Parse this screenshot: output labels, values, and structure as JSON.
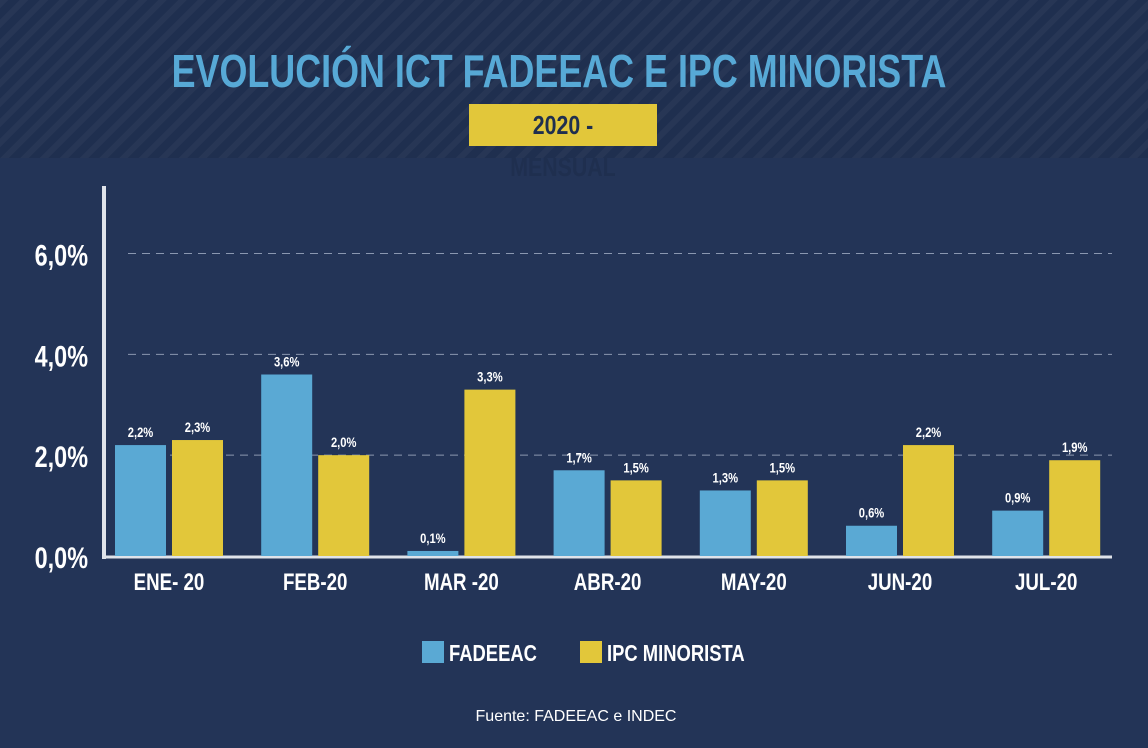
{
  "header": {
    "title": "EVOLUCIÓN ICT FADEEAC E IPC MINORISTA",
    "subtitle": "2020 - MENSUAL"
  },
  "source": "Fuente: FADEEAC e INDEC",
  "colors": {
    "fadeeac": "#5aa9d4",
    "ipc": "#e2c73a",
    "background": "#233457",
    "header_bg": "#1f2f4f"
  },
  "chart_data": {
    "type": "bar",
    "categories": [
      "ENE- 20",
      "FEB-20",
      "MAR -20",
      "ABR-20",
      "MAY-20",
      "JUN-20",
      "JUL-20"
    ],
    "series": [
      {
        "name": "FADEEAC",
        "values": [
          2.2,
          3.6,
          0.1,
          1.7,
          1.3,
          0.6,
          0.9
        ],
        "labels": [
          "2,2%",
          "3,6%",
          "0,1%",
          "1,7%",
          "1,3%",
          "0,6%",
          "0,9%"
        ]
      },
      {
        "name": "IPC MINORISTA",
        "values": [
          2.3,
          2.0,
          3.3,
          1.5,
          1.5,
          2.2,
          1.9
        ],
        "labels": [
          "2,3%",
          "2,0%",
          "3,3%",
          "1,5%",
          "1,5%",
          "2,2%",
          "1,9%"
        ]
      }
    ],
    "ylim": [
      0,
      7.2
    ],
    "yticks": [
      0,
      2,
      4,
      6
    ],
    "ytick_labels": [
      "0,0%",
      "2,0%",
      "4,0%",
      "6,0%"
    ],
    "grid": true,
    "legend_position": "bottom-center"
  }
}
